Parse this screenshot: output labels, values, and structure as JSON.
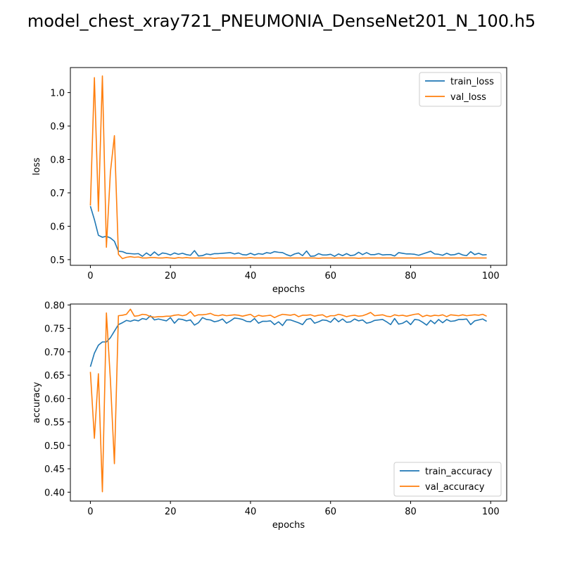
{
  "suptitle": "model_chest_xray721_PNEUMONIA_DenseNet201_N_100.h5",
  "colors": {
    "train": "#1f77b4",
    "val": "#ff7f0e"
  },
  "chart_data": [
    {
      "type": "line",
      "xlabel": "epochs",
      "ylabel": "loss",
      "xlim": [
        -5,
        104
      ],
      "ylim": [
        0.483,
        1.075
      ],
      "xticks": [
        0,
        20,
        40,
        60,
        80,
        100
      ],
      "yticks": [
        0.5,
        0.6,
        0.7,
        0.8,
        0.9,
        1.0
      ],
      "ytick_labels": [
        "0.5",
        "0.6",
        "0.7",
        "0.8",
        "0.9",
        "1.0"
      ],
      "legend_position": "upper right",
      "series": [
        {
          "name": "train_loss",
          "values": [
            0.66,
            0.62,
            0.573,
            0.567,
            0.57,
            0.565,
            0.555,
            0.525,
            0.524,
            0.519,
            0.518,
            0.517,
            0.518,
            0.51,
            0.52,
            0.512,
            0.523,
            0.513,
            0.52,
            0.518,
            0.514,
            0.52,
            0.516,
            0.519,
            0.515,
            0.513,
            0.527,
            0.511,
            0.512,
            0.517,
            0.515,
            0.518,
            0.518,
            0.519,
            0.52,
            0.521,
            0.517,
            0.52,
            0.515,
            0.514,
            0.519,
            0.514,
            0.518,
            0.516,
            0.521,
            0.519,
            0.524,
            0.522,
            0.521,
            0.515,
            0.511,
            0.517,
            0.52,
            0.512,
            0.526,
            0.51,
            0.511,
            0.518,
            0.514,
            0.514,
            0.516,
            0.51,
            0.517,
            0.512,
            0.518,
            0.512,
            0.514,
            0.522,
            0.515,
            0.521,
            0.515,
            0.515,
            0.518,
            0.514,
            0.515,
            0.515,
            0.511,
            0.521,
            0.519,
            0.517,
            0.517,
            0.516,
            0.513,
            0.517,
            0.521,
            0.525,
            0.517,
            0.516,
            0.513,
            0.519,
            0.514,
            0.515,
            0.519,
            0.514,
            0.512,
            0.524,
            0.515,
            0.519,
            0.514,
            0.515
          ]
        },
        {
          "name": "val_loss",
          "values": [
            0.662,
            1.045,
            0.645,
            1.05,
            0.537,
            0.762,
            0.871,
            0.516,
            0.503,
            0.507,
            0.509,
            0.507,
            0.508,
            0.505,
            0.505,
            0.506,
            0.506,
            0.505,
            0.505,
            0.506,
            0.505,
            0.504,
            0.506,
            0.505,
            0.506,
            0.505,
            0.505,
            0.505,
            0.505,
            0.505,
            0.505,
            0.504,
            0.505,
            0.505,
            0.505,
            0.505,
            0.505,
            0.505,
            0.505,
            0.505,
            0.506,
            0.505,
            0.505,
            0.505,
            0.505,
            0.505,
            0.505,
            0.505,
            0.505,
            0.505,
            0.505,
            0.505,
            0.505,
            0.505,
            0.505,
            0.505,
            0.505,
            0.504,
            0.505,
            0.505,
            0.505,
            0.505,
            0.505,
            0.505,
            0.505,
            0.505,
            0.505,
            0.504,
            0.505,
            0.505,
            0.505,
            0.505,
            0.505,
            0.505,
            0.505,
            0.505,
            0.505,
            0.505,
            0.505,
            0.505,
            0.505,
            0.505,
            0.505,
            0.505,
            0.505,
            0.505,
            0.505,
            0.505,
            0.505,
            0.505,
            0.505,
            0.505,
            0.505,
            0.505,
            0.505,
            0.505,
            0.505,
            0.505,
            0.505,
            0.505
          ]
        }
      ]
    },
    {
      "type": "line",
      "xlabel": "epochs",
      "ylabel": "accuracy",
      "xlim": [
        -5,
        104
      ],
      "ylim": [
        0.381,
        0.802
      ],
      "xticks": [
        0,
        20,
        40,
        60,
        80,
        100
      ],
      "yticks": [
        0.4,
        0.45,
        0.5,
        0.55,
        0.6,
        0.65,
        0.7,
        0.75,
        0.8
      ],
      "ytick_labels": [
        "0.40",
        "0.45",
        "0.50",
        "0.55",
        "0.60",
        "0.65",
        "0.70",
        "0.75",
        "0.80"
      ],
      "legend_position": "lower right",
      "series": [
        {
          "name": "train_accuracy",
          "values": [
            0.668,
            0.697,
            0.714,
            0.721,
            0.721,
            0.73,
            0.744,
            0.758,
            0.762,
            0.767,
            0.765,
            0.768,
            0.766,
            0.771,
            0.769,
            0.777,
            0.768,
            0.77,
            0.768,
            0.766,
            0.773,
            0.761,
            0.77,
            0.769,
            0.766,
            0.768,
            0.757,
            0.762,
            0.773,
            0.769,
            0.768,
            0.764,
            0.766,
            0.77,
            0.761,
            0.766,
            0.772,
            0.771,
            0.769,
            0.765,
            0.764,
            0.771,
            0.761,
            0.765,
            0.765,
            0.766,
            0.758,
            0.764,
            0.756,
            0.768,
            0.768,
            0.765,
            0.762,
            0.758,
            0.769,
            0.771,
            0.761,
            0.764,
            0.768,
            0.767,
            0.763,
            0.772,
            0.764,
            0.77,
            0.763,
            0.764,
            0.77,
            0.766,
            0.768,
            0.761,
            0.763,
            0.767,
            0.768,
            0.769,
            0.764,
            0.758,
            0.771,
            0.759,
            0.761,
            0.766,
            0.758,
            0.769,
            0.768,
            0.763,
            0.757,
            0.767,
            0.76,
            0.769,
            0.762,
            0.769,
            0.765,
            0.766,
            0.769,
            0.769,
            0.77,
            0.758,
            0.766,
            0.768,
            0.77,
            0.765
          ]
        },
        {
          "name": "val_accuracy",
          "values": [
            0.657,
            0.515,
            0.653,
            0.401,
            0.783,
            0.64,
            0.461,
            0.777,
            0.778,
            0.78,
            0.791,
            0.776,
            0.777,
            0.78,
            0.779,
            0.775,
            0.774,
            0.775,
            0.775,
            0.776,
            0.776,
            0.778,
            0.779,
            0.777,
            0.779,
            0.786,
            0.776,
            0.779,
            0.779,
            0.78,
            0.782,
            0.778,
            0.777,
            0.779,
            0.777,
            0.778,
            0.779,
            0.778,
            0.776,
            0.778,
            0.78,
            0.774,
            0.778,
            0.776,
            0.777,
            0.778,
            0.773,
            0.777,
            0.78,
            0.779,
            0.778,
            0.78,
            0.775,
            0.778,
            0.778,
            0.779,
            0.776,
            0.778,
            0.779,
            0.774,
            0.777,
            0.777,
            0.78,
            0.778,
            0.775,
            0.777,
            0.778,
            0.776,
            0.777,
            0.78,
            0.784,
            0.777,
            0.778,
            0.779,
            0.776,
            0.775,
            0.779,
            0.777,
            0.778,
            0.776,
            0.778,
            0.78,
            0.781,
            0.775,
            0.778,
            0.776,
            0.778,
            0.777,
            0.779,
            0.775,
            0.779,
            0.778,
            0.777,
            0.779,
            0.777,
            0.778,
            0.779,
            0.778,
            0.78,
            0.776
          ]
        }
      ]
    }
  ]
}
